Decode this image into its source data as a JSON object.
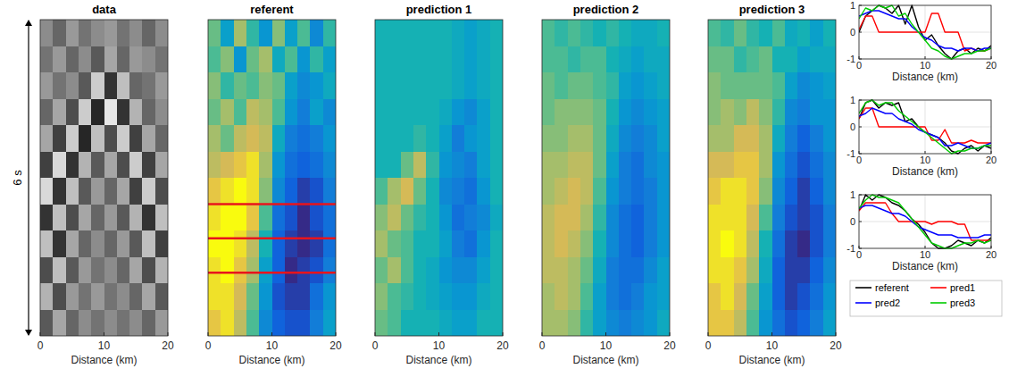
{
  "chart_data": [
    {
      "type": "heatmap",
      "title": "data",
      "xlabel": "Distance (km)",
      "ylabel": "6 s",
      "xlim": [
        0,
        20
      ],
      "xticks": [
        0,
        10,
        20
      ],
      "ylim": [
        0,
        6
      ],
      "tick_labels": "x",
      "color": "gray",
      "zlim": [
        -1,
        1
      ],
      "cells": [
        [
          0.1,
          -0.2,
          0.2,
          -0.1,
          0.1,
          0.2,
          -0.1,
          0.1,
          -0.2,
          0.1
        ],
        [
          -0.1,
          0.2,
          -0.2,
          0.1,
          -0.3,
          0.3,
          -0.2,
          0.2,
          0.1,
          -0.1
        ],
        [
          0.2,
          -0.1,
          0.1,
          -0.3,
          0.6,
          -0.6,
          0.5,
          -0.2,
          -0.1,
          0.2
        ],
        [
          -0.2,
          0.3,
          -0.4,
          0.6,
          -0.7,
          0.8,
          -0.6,
          0.4,
          -0.2,
          0.1
        ],
        [
          0.3,
          -0.5,
          0.6,
          -0.7,
          0.5,
          -0.4,
          0.6,
          -0.5,
          0.3,
          -0.2
        ],
        [
          -0.5,
          0.7,
          -0.6,
          0.4,
          -0.3,
          0.3,
          -0.4,
          0.6,
          -0.5,
          0.3
        ],
        [
          0.7,
          -0.6,
          0.5,
          -0.3,
          0.2,
          -0.2,
          0.3,
          -0.5,
          0.6,
          -0.4
        ],
        [
          -0.6,
          0.5,
          -0.4,
          0.3,
          -0.2,
          0.2,
          -0.3,
          0.4,
          -0.6,
          0.5
        ],
        [
          0.5,
          -0.6,
          0.3,
          -0.2,
          0.1,
          -0.2,
          0.2,
          -0.3,
          0.5,
          -0.5
        ],
        [
          -0.4,
          0.5,
          -0.3,
          0.2,
          -0.1,
          0.1,
          -0.2,
          0.3,
          -0.4,
          0.4
        ],
        [
          0.4,
          -0.4,
          0.2,
          -0.1,
          0.2,
          -0.1,
          0.1,
          -0.2,
          0.3,
          -0.3
        ],
        [
          -0.3,
          0.3,
          -0.2,
          0.1,
          -0.1,
          0.1,
          -0.1,
          0.1,
          -0.2,
          0.2
        ]
      ]
    },
    {
      "type": "heatmap",
      "title": "referent",
      "xlabel": "Distance (km)",
      "xlim": [
        0,
        20
      ],
      "xticks": [
        0,
        10,
        20
      ],
      "ylim": [
        0,
        6
      ],
      "tick_labels": "x",
      "color": "parula",
      "zlim": [
        -1,
        1
      ],
      "hlines": [
        3.5,
        4.15,
        4.8
      ],
      "cells": [
        [
          0.3,
          -0.2,
          0.5,
          0.1,
          -0.3,
          0.4,
          -0.2,
          0.2,
          -0.4,
          0.1
        ],
        [
          0.2,
          0.4,
          -0.3,
          0.3,
          0.5,
          -0.1,
          0.2,
          -0.3,
          0.1,
          -0.2
        ],
        [
          0.4,
          0.1,
          0.3,
          0.2,
          0.4,
          0.3,
          -0.2,
          -0.4,
          -0.3,
          -0.1
        ],
        [
          0.3,
          0.5,
          0.2,
          0.6,
          0.5,
          0.2,
          -0.3,
          -0.5,
          -0.2,
          -0.4
        ],
        [
          0.5,
          0.3,
          0.6,
          0.7,
          0.6,
          -0.1,
          -0.5,
          -0.6,
          -0.5,
          -0.3
        ],
        [
          0.6,
          0.7,
          0.8,
          0.9,
          0.5,
          -0.3,
          -0.6,
          -0.7,
          -0.6,
          -0.4
        ],
        [
          0.8,
          0.9,
          1.0,
          0.9,
          0.4,
          -0.4,
          -0.7,
          -0.9,
          -0.8,
          -0.5
        ],
        [
          0.9,
          1.0,
          1.0,
          0.8,
          0.2,
          -0.6,
          -0.8,
          -1.0,
          -0.8,
          -0.6
        ],
        [
          1.0,
          1.0,
          0.9,
          0.6,
          0.0,
          -0.7,
          -0.9,
          -1.0,
          -0.9,
          -0.6
        ],
        [
          0.9,
          1.0,
          0.8,
          0.5,
          -0.2,
          -0.7,
          -1.0,
          -0.9,
          -0.8,
          -0.5
        ],
        [
          0.9,
          0.9,
          0.7,
          0.3,
          -0.3,
          -0.8,
          -0.9,
          -0.9,
          -0.6,
          -0.3
        ],
        [
          0.8,
          0.9,
          0.6,
          0.2,
          -0.4,
          -0.7,
          -0.8,
          -0.8,
          -0.5,
          -0.2
        ]
      ]
    },
    {
      "type": "heatmap",
      "title": "prediction 1",
      "xlabel": "Distance (km)",
      "xlim": [
        0,
        20
      ],
      "xticks": [
        0,
        10,
        20
      ],
      "ylim": [
        0,
        6
      ],
      "tick_labels": "x",
      "color": "parula",
      "zlim": [
        -1,
        1
      ],
      "cells": [
        [
          0,
          0,
          0,
          0,
          0,
          0,
          -0.1,
          -0.2,
          -0.1,
          0
        ],
        [
          0,
          0,
          0,
          0,
          0,
          0,
          -0.1,
          -0.2,
          -0.1,
          0
        ],
        [
          0,
          0,
          0,
          0,
          0,
          0,
          -0.1,
          -0.2,
          -0.1,
          0
        ],
        [
          0,
          0,
          0,
          0,
          0,
          -0.1,
          -0.3,
          -0.4,
          -0.2,
          0
        ],
        [
          0,
          0,
          0,
          0.1,
          0,
          -0.2,
          -0.5,
          -0.3,
          -0.2,
          0
        ],
        [
          0,
          0,
          0.3,
          0.6,
          0.1,
          -0.3,
          -0.4,
          -0.5,
          -0.2,
          0
        ],
        [
          0.2,
          0.5,
          0.7,
          0.3,
          0,
          -0.4,
          -0.5,
          -0.6,
          -0.3,
          0
        ],
        [
          0.4,
          0.6,
          0.3,
          0.1,
          0,
          -0.3,
          -0.6,
          -0.5,
          -0.4,
          -0.1
        ],
        [
          0.5,
          0.3,
          0.2,
          0,
          0,
          -0.2,
          -0.5,
          -0.6,
          -0.3,
          0
        ],
        [
          0.3,
          0.5,
          0.2,
          0,
          -0.1,
          -0.3,
          -0.4,
          -0.4,
          -0.2,
          0
        ],
        [
          0.4,
          0.2,
          0.1,
          0,
          -0.1,
          -0.2,
          -0.3,
          -0.3,
          -0.1,
          0
        ],
        [
          0.3,
          0.2,
          0,
          0,
          0,
          -0.1,
          -0.2,
          -0.2,
          0,
          0
        ]
      ]
    },
    {
      "type": "heatmap",
      "title": "prediction 2",
      "xlabel": "Distance (km)",
      "xlim": [
        0,
        20
      ],
      "xticks": [
        0,
        10,
        20
      ],
      "ylim": [
        0,
        6
      ],
      "tick_labels": "x",
      "color": "parula",
      "zlim": [
        -1,
        1
      ],
      "cells": [
        [
          0.2,
          0.1,
          0.2,
          0.1,
          0,
          0.1,
          0,
          -0.1,
          -0.1,
          0
        ],
        [
          0.2,
          0.2,
          0.1,
          0.2,
          0.2,
          0,
          -0.1,
          -0.2,
          -0.1,
          -0.1
        ],
        [
          0.3,
          0.2,
          0.3,
          0.3,
          0.2,
          0.1,
          -0.2,
          -0.3,
          -0.2,
          -0.1
        ],
        [
          0.3,
          0.4,
          0.4,
          0.4,
          0.3,
          0,
          -0.3,
          -0.4,
          -0.3,
          -0.2
        ],
        [
          0.4,
          0.4,
          0.5,
          0.5,
          0.3,
          -0.1,
          -0.4,
          -0.5,
          -0.4,
          -0.2
        ],
        [
          0.5,
          0.5,
          0.6,
          0.6,
          0.3,
          -0.2,
          -0.5,
          -0.6,
          -0.4,
          -0.3
        ],
        [
          0.5,
          0.6,
          0.7,
          0.6,
          0.2,
          -0.3,
          -0.5,
          -0.6,
          -0.5,
          -0.3
        ],
        [
          0.6,
          0.7,
          0.7,
          0.5,
          0.1,
          -0.4,
          -0.6,
          -0.7,
          -0.5,
          -0.3
        ],
        [
          0.6,
          0.7,
          0.6,
          0.4,
          0,
          -0.4,
          -0.6,
          -0.7,
          -0.5,
          -0.3
        ],
        [
          0.6,
          0.6,
          0.5,
          0.3,
          -0.1,
          -0.5,
          -0.6,
          -0.6,
          -0.4,
          -0.2
        ],
        [
          0.5,
          0.6,
          0.5,
          0.2,
          -0.2,
          -0.5,
          -0.6,
          -0.5,
          -0.3,
          -0.2
        ],
        [
          0.5,
          0.5,
          0.4,
          0.1,
          -0.2,
          -0.4,
          -0.5,
          -0.4,
          -0.3,
          -0.1
        ]
      ]
    },
    {
      "type": "heatmap",
      "title": "prediction 3",
      "xlabel": "Distance (km)",
      "xlim": [
        0,
        20
      ],
      "xticks": [
        0,
        10,
        20
      ],
      "ylim": [
        0,
        6
      ],
      "tick_labels": "x",
      "color": "parula",
      "zlim": [
        -1,
        1
      ],
      "cells": [
        [
          0.2,
          0.1,
          0.3,
          0.1,
          0,
          0.2,
          -0.1,
          0,
          -0.2,
          0
        ],
        [
          0.3,
          0.3,
          0.1,
          0.2,
          0.3,
          0,
          0,
          -0.2,
          -0.1,
          -0.1
        ],
        [
          0.4,
          0.3,
          0.3,
          0.3,
          0.3,
          0.2,
          -0.2,
          -0.4,
          -0.3,
          -0.2
        ],
        [
          0.4,
          0.5,
          0.4,
          0.6,
          0.4,
          0.1,
          -0.4,
          -0.5,
          -0.3,
          -0.3
        ],
        [
          0.5,
          0.5,
          0.7,
          0.7,
          0.5,
          -0.1,
          -0.5,
          -0.7,
          -0.5,
          -0.3
        ],
        [
          0.7,
          0.7,
          0.8,
          0.8,
          0.5,
          -0.3,
          -0.6,
          -0.8,
          -0.6,
          -0.4
        ],
        [
          0.8,
          0.9,
          0.9,
          0.8,
          0.4,
          -0.4,
          -0.7,
          -0.9,
          -0.7,
          -0.4
        ],
        [
          0.9,
          0.9,
          0.9,
          0.7,
          0.2,
          -0.5,
          -0.8,
          -0.9,
          -0.8,
          -0.5
        ],
        [
          0.9,
          1.0,
          0.9,
          0.6,
          0,
          -0.6,
          -0.9,
          -1.0,
          -0.8,
          -0.5
        ],
        [
          0.9,
          0.9,
          0.8,
          0.5,
          -0.1,
          -0.7,
          -0.9,
          -0.9,
          -0.7,
          -0.4
        ],
        [
          0.8,
          0.9,
          0.7,
          0.3,
          -0.2,
          -0.7,
          -0.9,
          -0.8,
          -0.6,
          -0.3
        ],
        [
          0.8,
          0.8,
          0.6,
          0.2,
          -0.3,
          -0.6,
          -0.8,
          -0.7,
          -0.5,
          -0.2
        ]
      ]
    },
    {
      "type": "line",
      "xlabel": "Distance (km)",
      "x": [
        0,
        1,
        2,
        3,
        4,
        5,
        6,
        7,
        8,
        9,
        10,
        11,
        12,
        13,
        14,
        15,
        16,
        17,
        18,
        19,
        20
      ],
      "xlim": [
        0,
        20
      ],
      "xticks": [
        0,
        10,
        20
      ],
      "ylim": [
        -1,
        1
      ],
      "yticks": [
        -1,
        0,
        1
      ],
      "grid": true,
      "series": [
        {
          "color": "#000000",
          "values": [
            0,
            0.6,
            0.8,
            1,
            0.9,
            0.7,
            1,
            0.3,
            1,
            0.2,
            -0.3,
            -0.1,
            -0.5,
            -0.8,
            -1,
            -0.7,
            -0.6,
            -0.8,
            -0.6,
            -0.7,
            -0.5
          ]
        },
        {
          "color": "#ff0000",
          "values": [
            0.1,
            0.6,
            0.6,
            0,
            0,
            0,
            0,
            0,
            0,
            0,
            0,
            0.7,
            0.7,
            0,
            0,
            0,
            -0.7,
            -0.6,
            -0.7,
            -0.7,
            -0.6
          ]
        },
        {
          "color": "#0000ff",
          "values": [
            0.6,
            0.7,
            0.8,
            0.8,
            0.7,
            0.6,
            0.5,
            0.5,
            0.2,
            0,
            -0.2,
            -0.3,
            -0.5,
            -0.6,
            -0.6,
            -0.7,
            -0.6,
            -0.6,
            -0.7,
            -0.6,
            -0.6
          ]
        },
        {
          "color": "#00cc00",
          "values": [
            0.5,
            0.9,
            0.8,
            1,
            0.9,
            1,
            0.6,
            0.7,
            0.3,
            0,
            -0.3,
            -0.6,
            -0.7,
            -0.9,
            -1,
            -0.9,
            -0.8,
            -0.8,
            -0.7,
            -0.7,
            -0.6
          ]
        }
      ]
    },
    {
      "type": "line",
      "xlabel": "Distance (km)",
      "x": [
        0,
        1,
        2,
        3,
        4,
        5,
        6,
        7,
        8,
        9,
        10,
        11,
        12,
        13,
        14,
        15,
        16,
        17,
        18,
        19,
        20
      ],
      "xlim": [
        0,
        20
      ],
      "xticks": [
        0,
        10,
        20
      ],
      "ylim": [
        -1,
        1
      ],
      "yticks": [
        -1,
        0,
        1
      ],
      "grid": true,
      "series": [
        {
          "color": "#000000",
          "values": [
            0.3,
            0.9,
            1,
            0.7,
            0.9,
            0.8,
            0.9,
            0.2,
            0.3,
            0,
            -0.2,
            -0.3,
            -0.4,
            -0.6,
            -0.9,
            -1,
            -0.8,
            -0.7,
            -0.9,
            -0.7,
            -0.8
          ]
        },
        {
          "color": "#ff0000",
          "values": [
            0.3,
            0.7,
            0.7,
            0,
            0,
            0,
            0,
            0,
            0,
            0,
            0,
            -0.5,
            -0.5,
            -0.1,
            -0.6,
            -0.6,
            -0.6,
            -0.5,
            -0.6,
            -0.6,
            -0.6
          ]
        },
        {
          "color": "#0000ff",
          "values": [
            0.4,
            0.5,
            0.7,
            0.6,
            0.5,
            0.5,
            0.3,
            0.2,
            0.1,
            -0.1,
            -0.2,
            -0.3,
            -0.4,
            -0.7,
            -0.7,
            -0.6,
            -0.7,
            -0.8,
            -0.8,
            -0.7,
            -0.6
          ]
        },
        {
          "color": "#00cc00",
          "values": [
            0.5,
            0.9,
            1,
            0.8,
            0.9,
            0.9,
            0.6,
            0.4,
            0.2,
            0,
            -0.2,
            -0.4,
            -0.6,
            -0.8,
            -1,
            -0.9,
            -0.9,
            -0.8,
            -0.8,
            -0.7,
            -0.7
          ]
        }
      ]
    },
    {
      "type": "line",
      "xlabel": "Distance (km)",
      "x": [
        0,
        1,
        2,
        3,
        4,
        5,
        6,
        7,
        8,
        9,
        10,
        11,
        12,
        13,
        14,
        15,
        16,
        17,
        18,
        19,
        20
      ],
      "xlim": [
        0,
        20
      ],
      "xticks": [
        0,
        10,
        20
      ],
      "ylim": [
        -1,
        1
      ],
      "yticks": [
        -1,
        0,
        1
      ],
      "grid": true,
      "legend": "bottom",
      "series": [
        {
          "name": "referent",
          "color": "#000000",
          "values": [
            0.4,
            1,
            0.8,
            1,
            0.9,
            0.7,
            0.6,
            0.4,
            0.1,
            -0.1,
            -0.4,
            -0.8,
            -1,
            -1,
            -0.9,
            -0.7,
            -0.8,
            -0.9,
            -0.7,
            -0.8,
            -0.6
          ]
        },
        {
          "name": "pred1",
          "color": "#ff0000",
          "values": [
            0.4,
            0.7,
            0.7,
            0.7,
            0.7,
            0.3,
            0,
            0,
            0,
            0,
            0,
            -0.1,
            0,
            0,
            0,
            -0.1,
            -0.1,
            -0.7,
            -0.7,
            -0.7,
            -0.7
          ]
        },
        {
          "name": "pred2",
          "color": "#0000ff",
          "values": [
            0.5,
            0.6,
            0.6,
            0.5,
            0.4,
            0.3,
            0.3,
            0.2,
            0,
            -0.2,
            -0.3,
            -0.4,
            -0.5,
            -0.5,
            -0.5,
            -0.6,
            -0.6,
            -0.6,
            -0.6,
            -0.5,
            -0.5
          ]
        },
        {
          "name": "pred3",
          "color": "#00cc00",
          "values": [
            0.5,
            0.8,
            1,
            0.9,
            0.9,
            0.8,
            0.7,
            0.4,
            0.1,
            -0.2,
            -0.5,
            -0.8,
            -0.9,
            -1,
            -1,
            -0.9,
            -0.8,
            -0.8,
            -0.7,
            -0.8,
            -0.7
          ]
        }
      ]
    }
  ]
}
